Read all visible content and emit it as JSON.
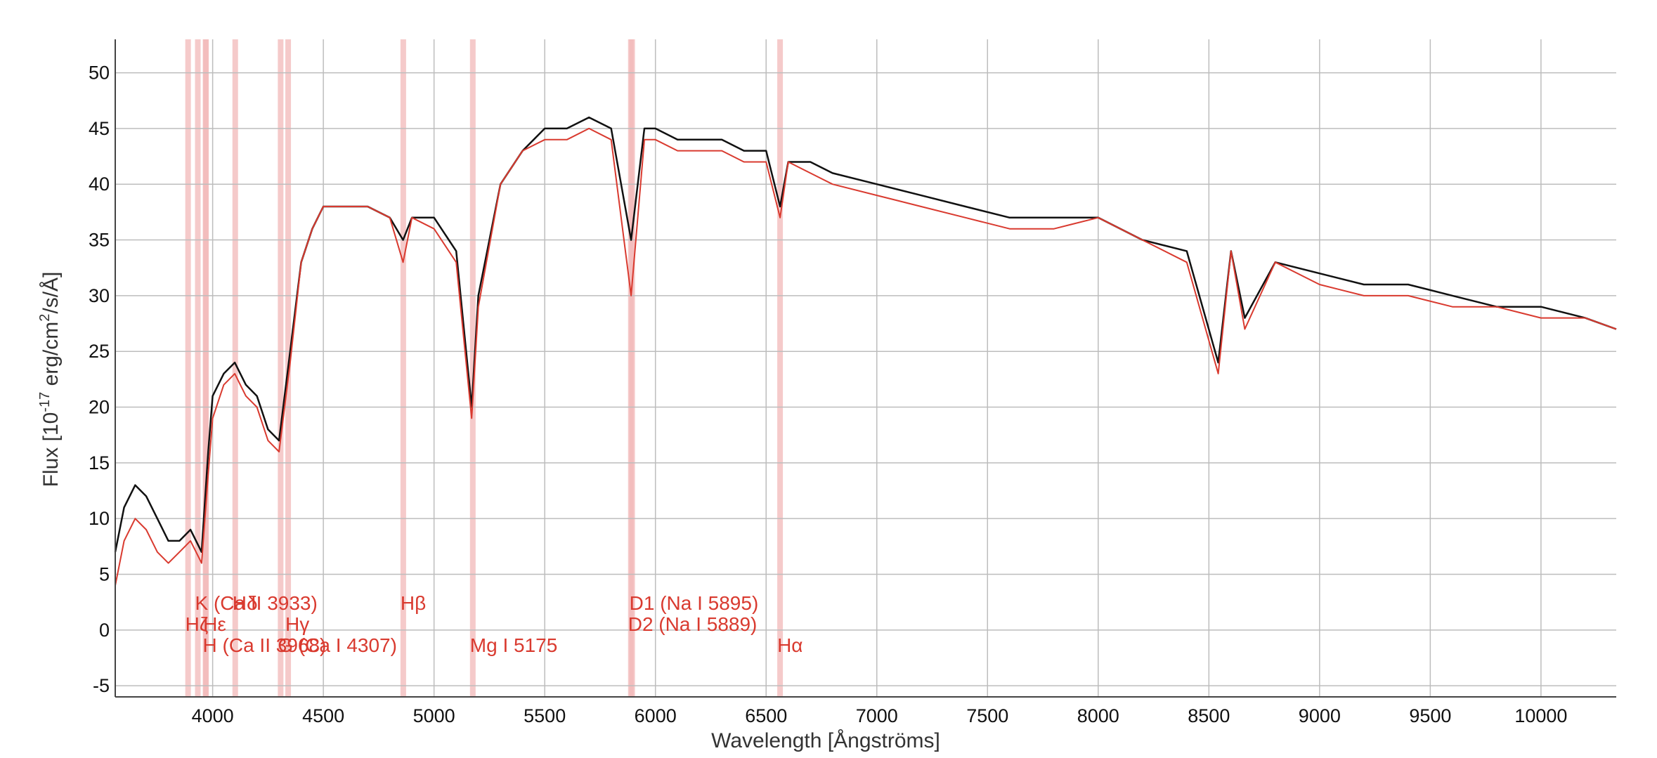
{
  "chart_data": {
    "type": "line",
    "title": "",
    "xlabel": "Wavelength [Ångströms]",
    "ylabel_prefix": "Flux [10",
    "ylabel_exp1": "-17",
    "ylabel_mid": " erg/cm",
    "ylabel_exp2": "2",
    "ylabel_suffix": "/s/Å]",
    "xlim": [
      3560,
      10340
    ],
    "ylim": [
      -6,
      53
    ],
    "x_ticks": [
      4000,
      4500,
      5000,
      5500,
      6000,
      6500,
      7000,
      7500,
      8000,
      8500,
      9000,
      9500,
      10000
    ],
    "y_ticks": [
      -5,
      0,
      5,
      10,
      15,
      20,
      25,
      30,
      35,
      40,
      45,
      50
    ],
    "grid": true,
    "colors": {
      "observed": "#111111",
      "model": "#d93a2f",
      "line_band": "#f2b8b8",
      "label": "#d93a2f",
      "grid": "#bdbdbd",
      "axis": "#444444"
    },
    "series": [
      {
        "key": "observed",
        "x": [
          3560,
          3600,
          3650,
          3700,
          3750,
          3800,
          3850,
          3900,
          3950,
          3980,
          4000,
          4050,
          4100,
          4150,
          4200,
          4250,
          4300,
          4350,
          4400,
          4450,
          4500,
          4600,
          4700,
          4800,
          4860,
          4900,
          5000,
          5100,
          5170,
          5200,
          5300,
          5400,
          5500,
          5600,
          5700,
          5800,
          5890,
          5950,
          6000,
          6100,
          6200,
          6300,
          6400,
          6500,
          6563,
          6600,
          6700,
          6800,
          7000,
          7200,
          7400,
          7600,
          7800,
          8000,
          8200,
          8400,
          8542,
          8600,
          8662,
          8800,
          9000,
          9200,
          9400,
          9600,
          9800,
          10000,
          10200,
          10340
        ],
        "y": [
          7,
          11,
          13,
          12,
          10,
          8,
          8,
          9,
          7,
          16,
          21,
          23,
          24,
          22,
          21,
          18,
          17,
          25,
          33,
          36,
          38,
          38,
          38,
          37,
          35,
          37,
          37,
          34,
          20,
          30,
          40,
          43,
          45,
          45,
          46,
          45,
          35,
          45,
          45,
          44,
          44,
          44,
          43,
          43,
          38,
          42,
          42,
          41,
          40,
          39,
          38,
          37,
          37,
          37,
          35,
          34,
          24,
          34,
          28,
          33,
          32,
          31,
          31,
          30,
          29,
          29,
          28,
          27
        ]
      },
      {
        "key": "model",
        "x": [
          3560,
          3600,
          3650,
          3700,
          3750,
          3800,
          3850,
          3900,
          3950,
          3980,
          4000,
          4050,
          4100,
          4150,
          4200,
          4250,
          4300,
          4350,
          4400,
          4450,
          4500,
          4600,
          4700,
          4800,
          4860,
          4900,
          5000,
          5100,
          5170,
          5200,
          5300,
          5400,
          5500,
          5600,
          5700,
          5800,
          5890,
          5950,
          6000,
          6100,
          6200,
          6300,
          6400,
          6500,
          6563,
          6600,
          6700,
          6800,
          7000,
          7200,
          7400,
          7600,
          7800,
          8000,
          8200,
          8400,
          8542,
          8600,
          8662,
          8800,
          9000,
          9200,
          9400,
          9600,
          9800,
          10000,
          10200,
          10340
        ],
        "y": [
          4,
          8,
          10,
          9,
          7,
          6,
          7,
          8,
          6,
          14,
          19,
          22,
          23,
          21,
          20,
          17,
          16,
          24,
          33,
          36,
          38,
          38,
          38,
          37,
          33,
          37,
          36,
          33,
          19,
          29,
          40,
          43,
          44,
          44,
          45,
          44,
          30,
          44,
          44,
          43,
          43,
          43,
          42,
          42,
          37,
          42,
          41,
          40,
          39,
          38,
          37,
          36,
          36,
          37,
          35,
          33,
          23,
          34,
          27,
          33,
          31,
          30,
          30,
          29,
          29,
          28,
          28,
          27
        ]
      }
    ],
    "spectral_lines": [
      {
        "wavelength": 3889,
        "label": "Hζ",
        "row": 1
      },
      {
        "wavelength": 3933,
        "label": "K (Ca II 3933)",
        "row": 0
      },
      {
        "wavelength": 3968,
        "label": "H (Ca II 3968)",
        "row": 2
      },
      {
        "wavelength": 3970,
        "label": "Hε",
        "row": 1
      },
      {
        "wavelength": 4102,
        "label": "Hδ",
        "row": 0
      },
      {
        "wavelength": 4307,
        "label": "G (Ca I 4307)",
        "row": 2
      },
      {
        "wavelength": 4341,
        "label": "Hγ",
        "row": 1
      },
      {
        "wavelength": 4861,
        "label": "Hβ",
        "row": 0
      },
      {
        "wavelength": 5175,
        "label": "Mg I 5175",
        "row": 2
      },
      {
        "wavelength": 5889,
        "label": "D2 (Na I 5889)",
        "row": 1
      },
      {
        "wavelength": 5895,
        "label": "D1 (Na I 5895)",
        "row": 0
      },
      {
        "wavelength": 6563,
        "label": "Hα",
        "row": 2
      }
    ]
  }
}
